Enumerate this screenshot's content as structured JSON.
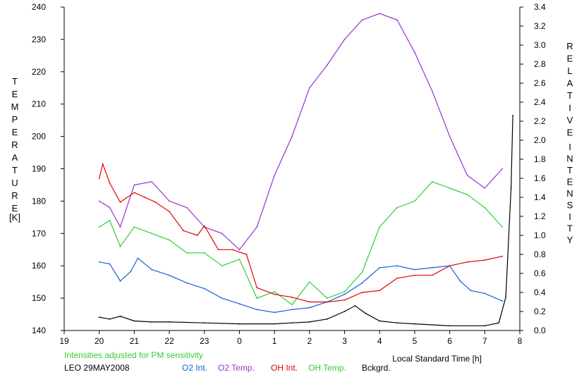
{
  "chart_data": {
    "type": "line",
    "x_axis": {
      "label": "Local Standard Time [h]",
      "ticks": [
        "19",
        "20",
        "21",
        "22",
        "23",
        "0",
        "1",
        "2",
        "3",
        "4",
        "5",
        "6",
        "7",
        "8"
      ],
      "range_hours": [
        19,
        32
      ]
    },
    "y_left": {
      "label_letters": [
        "T",
        "E",
        "M",
        "P",
        "E",
        "R",
        "A",
        "T",
        "U",
        "R",
        "E"
      ],
      "unit": "[K]",
      "ticks": [
        "140",
        "150",
        "160",
        "170",
        "180",
        "190",
        "200",
        "210",
        "220",
        "230",
        "240"
      ],
      "range": [
        140,
        240
      ]
    },
    "y_right": {
      "label_word1": [
        "R",
        "E",
        "L",
        "A",
        "T",
        "I",
        "V",
        "E"
      ],
      "label_word2": [
        "I",
        "N",
        "T",
        "E",
        "N",
        "S",
        "I",
        "T",
        "Y"
      ],
      "ticks": [
        "0.0",
        "0.2",
        "0.4",
        "0.6",
        "0.8",
        "1.0",
        "1.2",
        "1.4",
        "1.6",
        "1.8",
        "2.0",
        "2.2",
        "2.4",
        "2.6",
        "2.8",
        "3.0",
        "3.2",
        "3.4"
      ],
      "range": [
        0.0,
        3.4
      ]
    },
    "note": "Intensities adjusted for PM sensitivity",
    "footer_left": "LEO 29MAY2008",
    "series": [
      {
        "name": "O2 Int.",
        "axis": "right",
        "color": "#1060d8",
        "x": [
          20.0,
          20.3,
          20.6,
          20.9,
          21.1,
          21.5,
          22.0,
          22.5,
          23.0,
          23.5,
          24.0,
          24.5,
          25.0,
          25.5,
          26.0,
          26.5,
          27.0,
          27.5,
          28.0,
          28.5,
          29.0,
          29.5,
          30.0,
          30.3,
          30.6,
          31.0,
          31.5
        ],
        "y": [
          0.72,
          0.7,
          0.52,
          0.62,
          0.76,
          0.64,
          0.58,
          0.5,
          0.44,
          0.34,
          0.28,
          0.22,
          0.19,
          0.22,
          0.24,
          0.3,
          0.38,
          0.5,
          0.66,
          0.68,
          0.64,
          0.66,
          0.68,
          0.52,
          0.42,
          0.39,
          0.31
        ]
      },
      {
        "name": "O2 Temp.",
        "axis": "left",
        "color": "#9933cc",
        "x": [
          20.0,
          20.3,
          20.6,
          21.0,
          21.5,
          22.0,
          22.5,
          23.0,
          23.5,
          24.0,
          24.5,
          25.0,
          25.5,
          26.0,
          26.5,
          27.0,
          27.5,
          28.0,
          28.5,
          29.0,
          29.5,
          30.0,
          30.5,
          31.0,
          31.5
        ],
        "y": [
          180,
          178,
          172,
          185,
          186,
          180,
          178,
          172,
          170,
          165,
          172,
          188,
          200,
          215,
          222,
          230,
          236,
          238,
          236,
          226,
          214,
          200,
          188,
          184,
          190
        ]
      },
      {
        "name": "OH Int.",
        "axis": "right",
        "color": "#e00000",
        "x": [
          20.0,
          20.1,
          20.3,
          20.6,
          21.0,
          21.3,
          21.6,
          22.0,
          22.4,
          22.8,
          23.0,
          23.4,
          23.8,
          24.2,
          24.5,
          25.0,
          25.5,
          26.0,
          26.5,
          27.0,
          27.5,
          28.0,
          28.5,
          29.0,
          29.5,
          30.0,
          30.5,
          31.0,
          31.5
        ],
        "y": [
          1.6,
          1.75,
          1.55,
          1.35,
          1.45,
          1.4,
          1.35,
          1.25,
          1.05,
          1.0,
          1.1,
          0.85,
          0.85,
          0.8,
          0.45,
          0.38,
          0.35,
          0.3,
          0.3,
          0.32,
          0.4,
          0.42,
          0.55,
          0.58,
          0.58,
          0.68,
          0.72,
          0.74,
          0.78
        ]
      },
      {
        "name": "OH Temp.",
        "axis": "left",
        "color": "#33cc33",
        "x": [
          20.0,
          20.3,
          20.6,
          21.0,
          21.5,
          22.0,
          22.5,
          23.0,
          23.5,
          24.0,
          24.5,
          25.0,
          25.5,
          26.0,
          26.5,
          27.0,
          27.5,
          28.0,
          28.5,
          29.0,
          29.5,
          30.0,
          30.5,
          31.0,
          31.5
        ],
        "y": [
          172,
          174,
          166,
          172,
          170,
          168,
          164,
          164,
          160,
          162,
          150,
          152,
          148,
          155,
          150,
          152,
          158,
          172,
          178,
          180,
          186,
          184,
          182,
          178,
          172
        ]
      },
      {
        "name": "Bckgrd.",
        "axis": "right",
        "color": "#000000",
        "x": [
          20.0,
          20.3,
          20.6,
          21.0,
          21.5,
          22.0,
          23.0,
          24.0,
          25.0,
          25.5,
          26.0,
          26.5,
          27.0,
          27.3,
          27.6,
          28.0,
          28.5,
          29.0,
          30.0,
          31.0,
          31.4,
          31.6,
          31.75,
          31.8
        ],
        "y": [
          0.14,
          0.12,
          0.15,
          0.1,
          0.09,
          0.09,
          0.08,
          0.07,
          0.07,
          0.08,
          0.09,
          0.12,
          0.2,
          0.26,
          0.18,
          0.1,
          0.08,
          0.07,
          0.05,
          0.05,
          0.08,
          0.35,
          1.5,
          2.26
        ]
      }
    ]
  }
}
